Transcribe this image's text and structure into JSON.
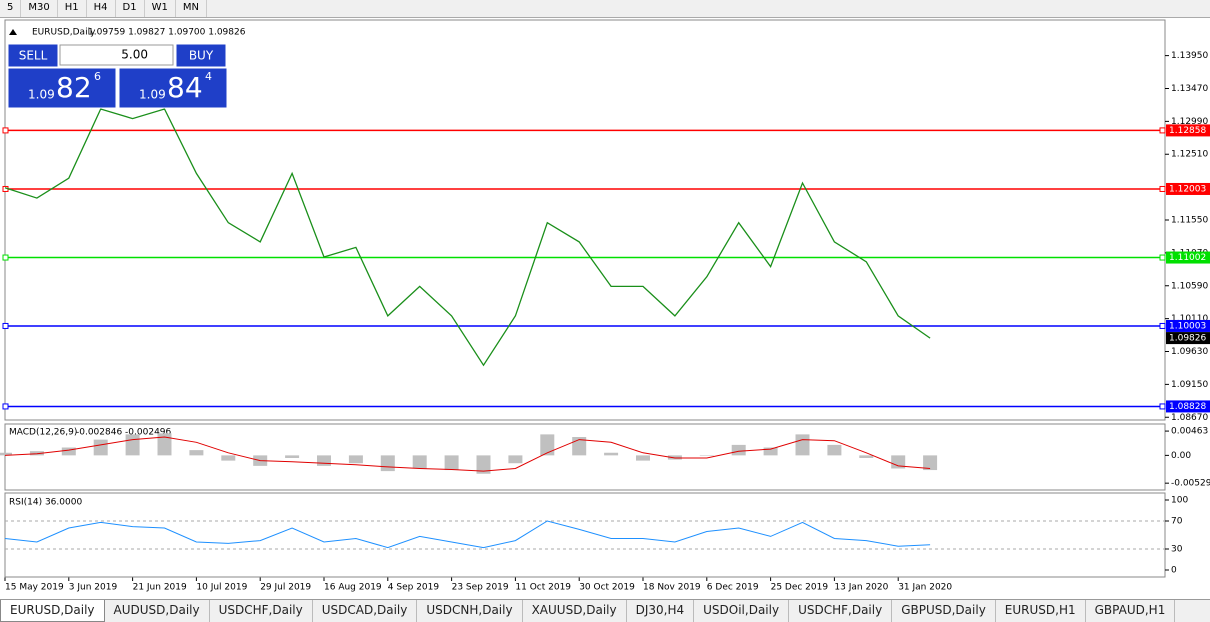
{
  "toolbar": {
    "timeframes": [
      "5",
      "M30",
      "H1",
      "H4",
      "D1",
      "W1",
      "MN"
    ]
  },
  "trade_panel": {
    "sell_label": "SELL",
    "buy_label": "BUY",
    "lot": "5.00",
    "sell_price": {
      "big_figure": "1.09",
      "pips": "82",
      "fraction": "6"
    },
    "buy_price": {
      "big_figure": "1.09",
      "pips": "84",
      "fraction": "4"
    }
  },
  "chart_data": [
    {
      "type": "line",
      "title": "EURUSD,Daily",
      "ohlc": "1.09759 1.09827 1.09700 1.09826",
      "categories": [
        "15 May 2019",
        null,
        "3 Jun 2019",
        null,
        "21 Jun 2019",
        null,
        "10 Jul 2019",
        null,
        "29 Jul 2019",
        null,
        "16 Aug 2019",
        null,
        "4 Sep 2019",
        null,
        "23 Sep 2019",
        null,
        "11 Oct 2019",
        null,
        "30 Oct 2019",
        null,
        "18 Nov 2019",
        null,
        "6 Dec 2019",
        null,
        "25 Dec 2019",
        null,
        "13 Jan 2020",
        null,
        "31 Jan 2020",
        null
      ],
      "values": [
        1.1202,
        1.1187,
        1.1216,
        1.1317,
        1.1303,
        1.1317,
        1.1223,
        1.1151,
        1.1123,
        1.1223,
        1.1101,
        1.1115,
        1.1015,
        1.1058,
        1.1015,
        1.0943,
        1.1015,
        1.1151,
        1.1123,
        1.1058,
        1.1058,
        1.1015,
        1.1072,
        1.1151,
        1.1087,
        1.1209,
        1.1123,
        1.1094,
        1.1015,
        1.09826
      ],
      "color": "#1a8f1a",
      "ylim": [
        1.0863,
        1.1447
      ],
      "yticks": [
        {
          "value": 1.1395,
          "label": "1.13950"
        },
        {
          "value": 1.1347,
          "label": "1.13470"
        },
        {
          "value": 1.1299,
          "label": "1.12990"
        },
        {
          "value": 1.1251,
          "label": "1.12510"
        },
        {
          "value": 1.1155,
          "label": "1.11550"
        },
        {
          "value": 1.1107,
          "label": "1.11070"
        },
        {
          "value": 1.1059,
          "label": "1.10590"
        },
        {
          "value": 1.1011,
          "label": "1.10110"
        },
        {
          "value": 1.0963,
          "label": "1.09630"
        },
        {
          "value": 1.0915,
          "label": "1.09150"
        },
        {
          "value": 1.0867,
          "label": "1.08670"
        }
      ],
      "levels": [
        {
          "value": 1.12858,
          "label": "1.12858",
          "color": "#ff0000"
        },
        {
          "value": 1.12003,
          "label": "1.12003",
          "color": "#ff0000"
        },
        {
          "value": 1.11002,
          "label": "1.11002",
          "color": "#00e000"
        },
        {
          "value": 1.10003,
          "label": "1.10003",
          "color": "#0000ff"
        },
        {
          "value": 1.08828,
          "label": "1.08828",
          "color": "#0000ff"
        }
      ],
      "current_price": {
        "value": 1.09826,
        "label": "1.09826"
      }
    },
    {
      "type": "macd",
      "title": "MACD(12,26,9)",
      "readout": "-0.002846 -0.002496",
      "series": [
        {
          "color": "#c0c0c0",
          "values": [
            0.0005,
            0.0008,
            0.0015,
            0.003,
            0.004,
            0.0042,
            0.001,
            -0.001,
            -0.002,
            -0.0005,
            -0.002,
            -0.0015,
            -0.003,
            -0.0025,
            -0.0028,
            -0.0035,
            -0.0015,
            0.004,
            0.0035,
            0.0005,
            -0.001,
            -0.0008,
            0.0,
            0.002,
            0.0015,
            0.004,
            0.002,
            -0.0005,
            -0.0025,
            -0.0028
          ]
        },
        {
          "color": "#e00000",
          "values": [
            0.0,
            0.0003,
            0.001,
            0.002,
            0.003,
            0.0035,
            0.0025,
            0.0005,
            -0.001,
            -0.0012,
            -0.0015,
            -0.0018,
            -0.0022,
            -0.0025,
            -0.0027,
            -0.003,
            -0.0025,
            0.0005,
            0.003,
            0.0025,
            0.0005,
            -0.0005,
            -0.0005,
            0.0008,
            0.0012,
            0.003,
            0.0028,
            0.0005,
            -0.002,
            -0.0025
          ]
        }
      ],
      "ylim": [
        -0.0066,
        0.00598
      ],
      "yticks": [
        0.00463,
        {
          "value": 0,
          "label": "0.00"
        },
        -0.005299
      ]
    },
    {
      "type": "rsi",
      "title": "RSI(14) 36.0000",
      "values": [
        45,
        40,
        60,
        68,
        62,
        60,
        40,
        38,
        42,
        60,
        40,
        45,
        32,
        48,
        40,
        32,
        42,
        70,
        58,
        45,
        45,
        40,
        55,
        60,
        48,
        68,
        45,
        42,
        34,
        36
      ],
      "color": "#1e90ff",
      "ylim": [
        -10,
        110
      ],
      "yticks": [
        100,
        70,
        30,
        0
      ],
      "levels": [
        70,
        30
      ]
    }
  ],
  "tabs": [
    "EURUSD,Daily",
    "AUDUSD,Daily",
    "USDCHF,Daily",
    "USDCAD,Daily",
    "USDCNH,Daily",
    "XAUUSD,Daily",
    "DJ30,H4",
    "USDOil,Daily",
    "USDCHF,Daily",
    "GBPUSD,Daily",
    "EURUSD,H1",
    "GBPAUD,H1"
  ]
}
